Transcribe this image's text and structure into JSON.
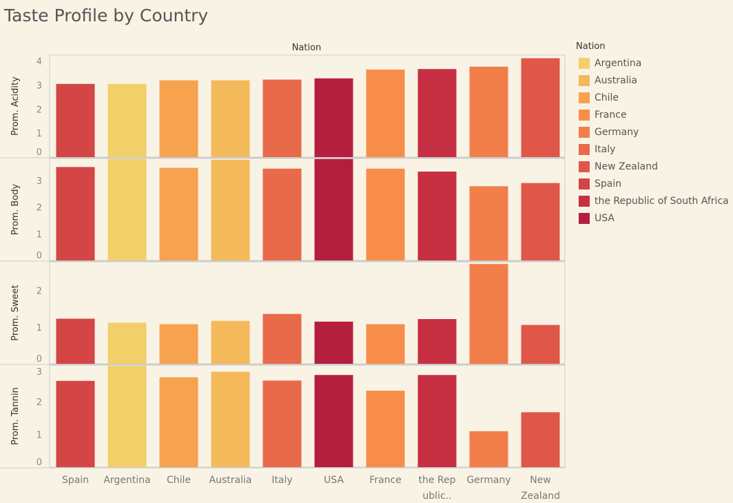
{
  "title": "Taste Profile by Country",
  "chart_data": {
    "type": "bar",
    "column_header": "Nation",
    "categories": [
      "Spain",
      "Argentina",
      "Chile",
      "Australia",
      "Italy",
      "USA",
      "France",
      "the Rep ublic..",
      "Germany",
      "New Zealand"
    ],
    "category_label_lines": [
      [
        "Spain"
      ],
      [
        "Argentina"
      ],
      [
        "Chile"
      ],
      [
        "Australia"
      ],
      [
        "Italy"
      ],
      [
        "USA"
      ],
      [
        "France"
      ],
      [
        "the Rep",
        "ublic.."
      ],
      [
        "Germany"
      ],
      [
        "New",
        "Zealand"
      ]
    ],
    "color_by": [
      "Spain",
      "Argentina",
      "Chile",
      "Australia",
      "Italy",
      "USA",
      "France",
      "the Republic of South Africa",
      "Germany",
      "New Zealand"
    ],
    "series": [
      {
        "name": "Prom. Acidity",
        "values": [
          3.05,
          3.05,
          3.2,
          3.2,
          3.23,
          3.28,
          3.65,
          3.67,
          3.77,
          4.12
        ],
        "ylim": [
          0,
          4.25
        ],
        "ticks": [
          0,
          1,
          2,
          3,
          4
        ]
      },
      {
        "name": "Prom. Body",
        "values": [
          3.5,
          3.8,
          3.47,
          3.77,
          3.44,
          3.8,
          3.44,
          3.33,
          2.78,
          2.9
        ],
        "ylim": [
          0,
          3.82
        ],
        "ticks": [
          0,
          1,
          2,
          3
        ]
      },
      {
        "name": "Prom. Sweet",
        "values": [
          1.23,
          1.12,
          1.08,
          1.17,
          1.36,
          1.15,
          1.08,
          1.22,
          2.72,
          1.06
        ],
        "ylim": [
          0,
          2.78
        ],
        "ticks": [
          0,
          1,
          2
        ]
      },
      {
        "name": "Prom. Tannin",
        "values": [
          2.64,
          3.1,
          2.75,
          2.92,
          2.65,
          2.82,
          2.34,
          2.82,
          1.1,
          1.68
        ],
        "ylim": [
          0,
          3.12
        ],
        "ticks": [
          0,
          1,
          2,
          3
        ]
      }
    ],
    "legend": {
      "title": "Nation",
      "position": "right",
      "items": [
        {
          "label": "Argentina",
          "color": "#f2cf68"
        },
        {
          "label": "Australia",
          "color": "#f4b95a"
        },
        {
          "label": "Chile",
          "color": "#f7a24f"
        },
        {
          "label": "France",
          "color": "#f88d4a"
        },
        {
          "label": "Germany",
          "color": "#f27e49"
        },
        {
          "label": "Italy",
          "color": "#e96a4a"
        },
        {
          "label": "New Zealand",
          "color": "#e0574a"
        },
        {
          "label": "Spain",
          "color": "#d44545"
        },
        {
          "label": "the Republic of South Africa",
          "color": "#c63042"
        },
        {
          "label": "USA",
          "color": "#b51f3e"
        }
      ]
    },
    "grid": false
  }
}
